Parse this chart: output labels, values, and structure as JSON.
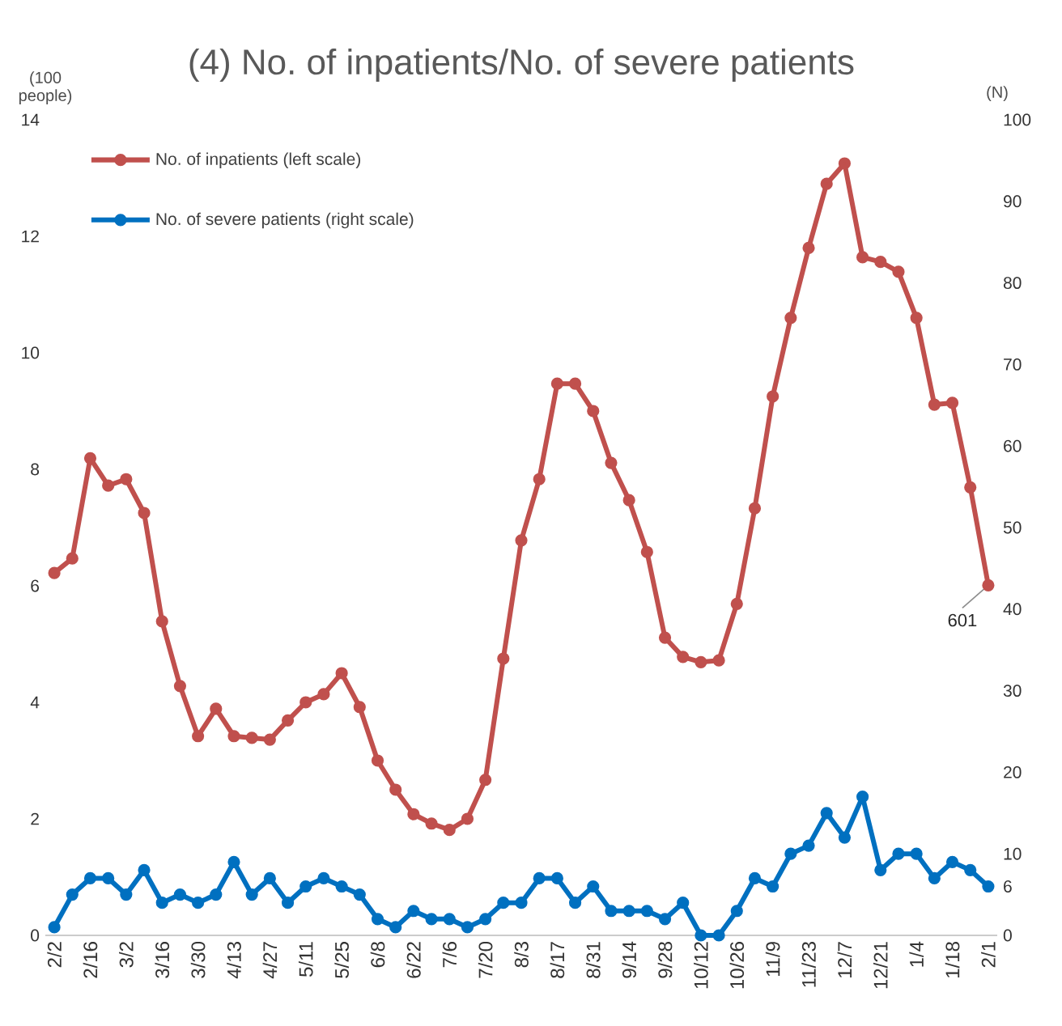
{
  "chart_data": {
    "type": "line",
    "title": "(4) No. of inpatients/No. of severe patients",
    "ylabel": "(100 people)",
    "y2label": "(N)",
    "categories": [
      "2/2",
      null,
      "2/16",
      null,
      "3/2",
      null,
      "3/16",
      null,
      "3/30",
      null,
      "4/13",
      null,
      "4/27",
      null,
      "5/11",
      null,
      "5/25",
      null,
      "6/8",
      null,
      "6/22",
      null,
      "7/6",
      null,
      "7/20",
      null,
      "8/3",
      null,
      "8/17",
      null,
      "8/31",
      null,
      "9/14",
      null,
      "9/28",
      null,
      "10/12",
      null,
      "10/26",
      null,
      "11/9",
      null,
      "11/23",
      null,
      "12/7",
      null,
      "12/21",
      null,
      "1/4",
      null,
      "1/18",
      null,
      "2/1"
    ],
    "series": [
      {
        "name": "No. of inpatients (left scale)",
        "color": "#c0504d",
        "values": [
          6.22,
          6.47,
          8.19,
          7.72,
          7.83,
          7.25,
          5.39,
          4.28,
          3.42,
          3.89,
          3.42,
          3.39,
          3.36,
          3.69,
          4.0,
          4.14,
          4.5,
          3.92,
          3.0,
          2.5,
          2.08,
          1.92,
          1.81,
          2.0,
          2.67,
          4.75,
          6.78,
          7.83,
          9.47,
          9.47,
          9.0,
          8.11,
          7.47,
          6.58,
          5.11,
          4.78,
          4.69,
          4.72,
          5.69,
          7.33,
          9.25,
          10.6,
          11.8,
          12.9,
          13.25,
          11.64,
          11.56,
          11.39,
          10.6,
          9.11,
          9.14,
          7.69,
          6.01
        ]
      },
      {
        "name": "No. of severe patients (right scale)",
        "color": "#0070c0",
        "axis": "y2",
        "values": [
          1,
          5,
          7,
          7,
          5,
          8,
          4,
          5,
          4,
          5,
          9,
          5,
          7,
          4,
          6,
          7,
          6,
          5,
          2,
          1,
          3,
          2,
          2,
          1,
          2,
          4,
          4,
          7,
          7,
          4,
          6,
          3,
          3,
          3,
          2,
          4,
          0,
          0,
          3,
          7,
          6,
          10,
          11,
          15,
          12,
          17,
          8,
          10,
          10,
          7,
          9,
          8,
          6
        ]
      }
    ],
    "ylim": [
      0,
      14
    ],
    "yticks": [
      0,
      2,
      4,
      6,
      8,
      10,
      12,
      14
    ],
    "y2lim": [
      0,
      100
    ],
    "y2ticks": [
      0,
      6,
      10,
      20,
      30,
      40,
      50,
      60,
      70,
      80,
      90,
      100
    ],
    "annotations": [
      {
        "text": "601",
        "x": "2/1",
        "y": 6.01
      }
    ],
    "legend": "top left",
    "marker": "circle",
    "line_style": "solid"
  }
}
